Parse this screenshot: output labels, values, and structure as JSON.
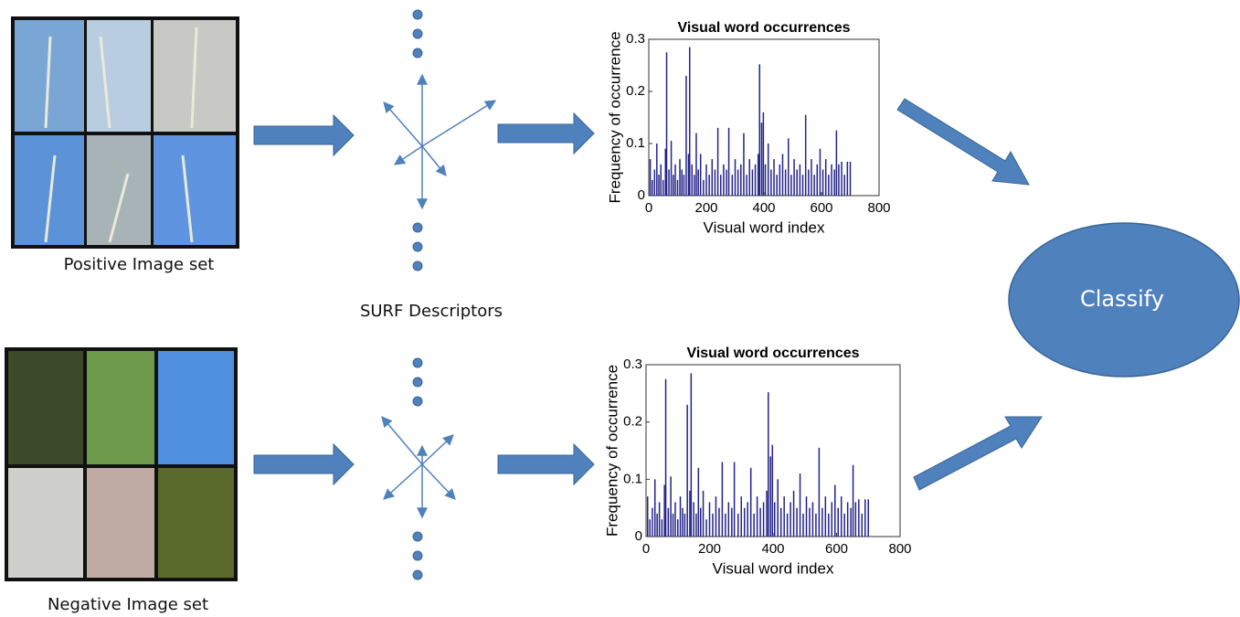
{
  "labels": {
    "positive": "Positive Image set",
    "negative": "Negative Image set",
    "surf": "SURF Descriptors",
    "classify": "Classify"
  },
  "chart_data": [
    {
      "type": "bar",
      "title": "Visual word occurrences",
      "x_label": "Visual word index",
      "y_label": "Frequency of occurrence",
      "color": "#23238a",
      "x": [
        5,
        12,
        20,
        28,
        35,
        42,
        50,
        58,
        62,
        70,
        78,
        85,
        92,
        100,
        108,
        115,
        122,
        130,
        138,
        142,
        150,
        158,
        165,
        172,
        180,
        190,
        200,
        210,
        220,
        230,
        240,
        250,
        260,
        270,
        278,
        290,
        300,
        310,
        320,
        330,
        340,
        350,
        360,
        370,
        380,
        385,
        392,
        398,
        405,
        415,
        425,
        435,
        445,
        455,
        465,
        475,
        485,
        495,
        505,
        515,
        525,
        535,
        545,
        555,
        565,
        575,
        585,
        595,
        605,
        615,
        625,
        635,
        645,
        652,
        660,
        670,
        680,
        690,
        700
      ],
      "values": [
        0.07,
        0.03,
        0.05,
        0.1,
        0.04,
        0.06,
        0.03,
        0.09,
        0.275,
        0.05,
        0.105,
        0.04,
        0.06,
        0.03,
        0.07,
        0.05,
        0.04,
        0.23,
        0.08,
        0.285,
        0.06,
        0.04,
        0.12,
        0.05,
        0.08,
        0.03,
        0.06,
        0.04,
        0.07,
        0.05,
        0.13,
        0.04,
        0.06,
        0.05,
        0.13,
        0.04,
        0.07,
        0.05,
        0.06,
        0.12,
        0.04,
        0.07,
        0.05,
        0.06,
        0.08,
        0.252,
        0.14,
        0.16,
        0.06,
        0.1,
        0.05,
        0.07,
        0.04,
        0.06,
        0.08,
        0.05,
        0.11,
        0.04,
        0.07,
        0.05,
        0.06,
        0.04,
        0.155,
        0.05,
        0.07,
        0.04,
        0.06,
        0.09,
        0.05,
        0.07,
        0.04,
        0.06,
        0.05,
        0.125,
        0.06,
        0.065,
        0.04,
        0.065,
        0.065
      ],
      "xlim": [
        0,
        800
      ],
      "ylim": [
        0,
        0.3
      ],
      "xticks": [
        0,
        200,
        400,
        600,
        800
      ],
      "yticks": [
        0,
        0.1,
        0.2,
        0.3
      ]
    },
    {
      "type": "bar",
      "title": "Visual word occurrences",
      "x_label": "Visual word index",
      "y_label": "Frequency of occurrence",
      "color": "#23238a",
      "x": [
        5,
        12,
        20,
        28,
        35,
        42,
        50,
        58,
        62,
        70,
        78,
        85,
        92,
        100,
        108,
        115,
        122,
        130,
        138,
        142,
        150,
        158,
        165,
        172,
        180,
        190,
        200,
        210,
        220,
        230,
        240,
        250,
        260,
        270,
        278,
        290,
        300,
        310,
        320,
        330,
        340,
        350,
        360,
        370,
        380,
        385,
        392,
        398,
        405,
        415,
        425,
        435,
        445,
        455,
        465,
        475,
        485,
        495,
        505,
        515,
        525,
        535,
        545,
        555,
        565,
        575,
        585,
        595,
        605,
        615,
        625,
        635,
        645,
        652,
        660,
        670,
        680,
        690,
        700
      ],
      "values": [
        0.07,
        0.03,
        0.05,
        0.1,
        0.04,
        0.06,
        0.03,
        0.09,
        0.275,
        0.05,
        0.105,
        0.04,
        0.06,
        0.03,
        0.07,
        0.05,
        0.04,
        0.23,
        0.08,
        0.285,
        0.06,
        0.04,
        0.12,
        0.05,
        0.08,
        0.03,
        0.06,
        0.04,
        0.07,
        0.05,
        0.13,
        0.04,
        0.06,
        0.05,
        0.13,
        0.04,
        0.07,
        0.05,
        0.06,
        0.12,
        0.04,
        0.07,
        0.05,
        0.06,
        0.08,
        0.252,
        0.14,
        0.16,
        0.06,
        0.1,
        0.05,
        0.07,
        0.04,
        0.06,
        0.08,
        0.05,
        0.11,
        0.04,
        0.07,
        0.05,
        0.06,
        0.04,
        0.155,
        0.05,
        0.07,
        0.04,
        0.06,
        0.09,
        0.05,
        0.07,
        0.04,
        0.06,
        0.05,
        0.125,
        0.06,
        0.065,
        0.04,
        0.065,
        0.065
      ],
      "xlim": [
        0,
        800
      ],
      "ylim": [
        0,
        0.3
      ],
      "xticks": [
        0,
        200,
        400,
        600,
        800
      ],
      "yticks": [
        0,
        0.1,
        0.2,
        0.3
      ]
    }
  ]
}
